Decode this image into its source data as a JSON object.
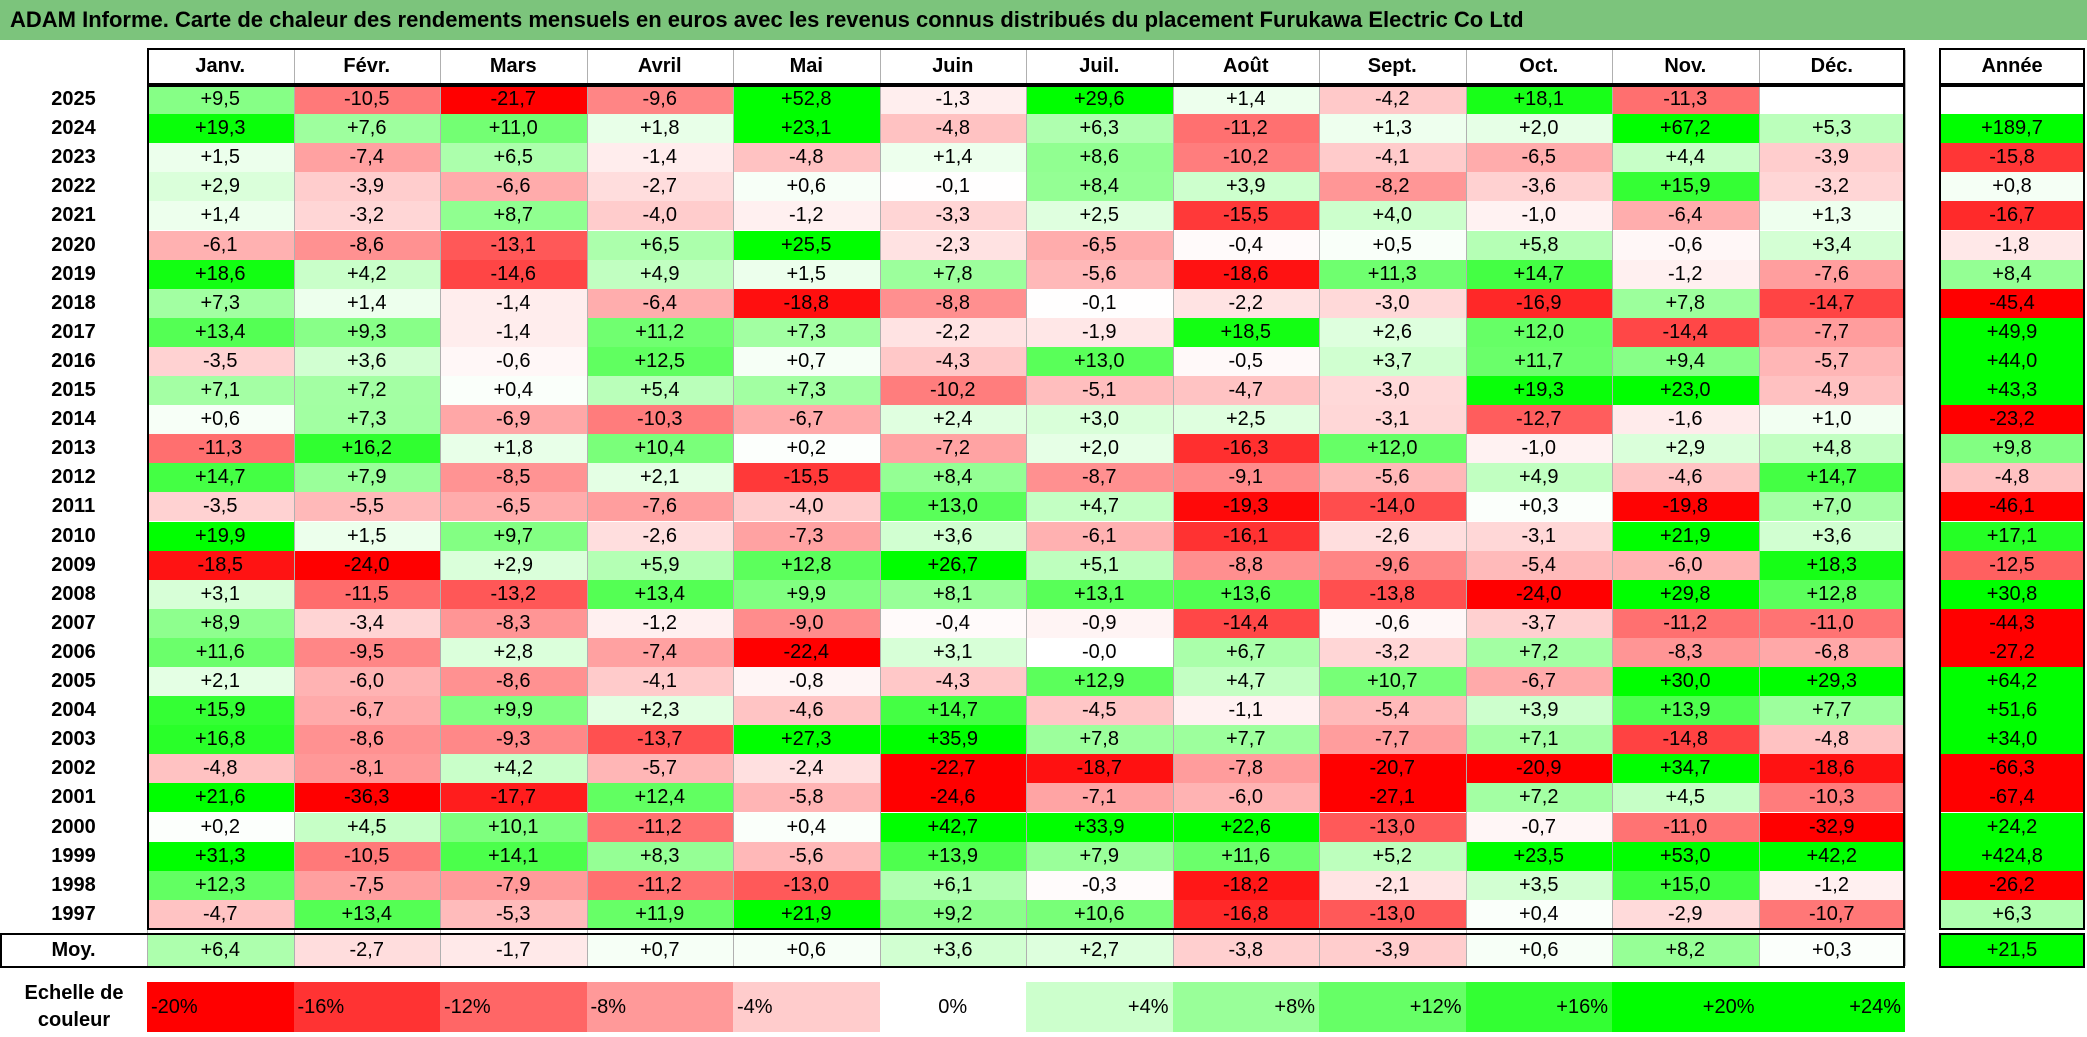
{
  "title": "ADAM Informe. Carte de chaleur des rendements mensuels en euros avec les revenus connus distribués du placement Furukawa Electric Co Ltd",
  "chart_data": {
    "type": "heatmap",
    "title": "ADAM Informe. Carte de chaleur des rendements mensuels en euros avec les revenus connus distribués du placement Furukawa Electric Co Ltd",
    "columns": [
      "Janv.",
      "Févr.",
      "Mars",
      "Avril",
      "Mai",
      "Juin",
      "Juil.",
      "Août",
      "Sept.",
      "Oct.",
      "Nov.",
      "Déc."
    ],
    "annual_header": "Année",
    "rows": [
      {
        "year": "2025",
        "values": [
          "+9,5",
          "-10,5",
          "-21,7",
          "-9,6",
          "+52,8",
          "-1,3",
          "+29,6",
          "+1,4",
          "-4,2",
          "+18,1",
          "-11,3",
          ""
        ],
        "annual": ""
      },
      {
        "year": "2024",
        "values": [
          "+19,3",
          "+7,6",
          "+11,0",
          "+1,8",
          "+23,1",
          "-4,8",
          "+6,3",
          "-11,2",
          "+1,3",
          "+2,0",
          "+67,2",
          "+5,3"
        ],
        "annual": "+189,7"
      },
      {
        "year": "2023",
        "values": [
          "+1,5",
          "-7,4",
          "+6,5",
          "-1,4",
          "-4,8",
          "+1,4",
          "+8,6",
          "-10,2",
          "-4,1",
          "-6,5",
          "+4,4",
          "-3,9"
        ],
        "annual": "-15,8"
      },
      {
        "year": "2022",
        "values": [
          "+2,9",
          "-3,9",
          "-6,6",
          "-2,7",
          "+0,6",
          "-0,1",
          "+8,4",
          "+3,9",
          "-8,2",
          "-3,6",
          "+15,9",
          "-3,2"
        ],
        "annual": "+0,8"
      },
      {
        "year": "2021",
        "values": [
          "+1,4",
          "-3,2",
          "+8,7",
          "-4,0",
          "-1,2",
          "-3,3",
          "+2,5",
          "-15,5",
          "+4,0",
          "-1,0",
          "-6,4",
          "+1,3"
        ],
        "annual": "-16,7"
      },
      {
        "year": "2020",
        "values": [
          "-6,1",
          "-8,6",
          "-13,1",
          "+6,5",
          "+25,5",
          "-2,3",
          "-6,5",
          "-0,4",
          "+0,5",
          "+5,8",
          "-0,6",
          "+3,4"
        ],
        "annual": "-1,8"
      },
      {
        "year": "2019",
        "values": [
          "+18,6",
          "+4,2",
          "-14,6",
          "+4,9",
          "+1,5",
          "+7,8",
          "-5,6",
          "-18,6",
          "+11,3",
          "+14,7",
          "-1,2",
          "-7,6"
        ],
        "annual": "+8,4"
      },
      {
        "year": "2018",
        "values": [
          "+7,3",
          "+1,4",
          "-1,4",
          "-6,4",
          "-18,8",
          "-8,8",
          "-0,1",
          "-2,2",
          "-3,0",
          "-16,9",
          "+7,8",
          "-14,7"
        ],
        "annual": "-45,4"
      },
      {
        "year": "2017",
        "values": [
          "+13,4",
          "+9,3",
          "-1,4",
          "+11,2",
          "+7,3",
          "-2,2",
          "-1,9",
          "+18,5",
          "+2,6",
          "+12,0",
          "-14,4",
          "-7,7"
        ],
        "annual": "+49,9"
      },
      {
        "year": "2016",
        "values": [
          "-3,5",
          "+3,6",
          "-0,6",
          "+12,5",
          "+0,7",
          "-4,3",
          "+13,0",
          "-0,5",
          "+3,7",
          "+11,7",
          "+9,4",
          "-5,7"
        ],
        "annual": "+44,0"
      },
      {
        "year": "2015",
        "values": [
          "+7,1",
          "+7,2",
          "+0,4",
          "+5,4",
          "+7,3",
          "-10,2",
          "-5,1",
          "-4,7",
          "-3,0",
          "+19,3",
          "+23,0",
          "-4,9"
        ],
        "annual": "+43,3"
      },
      {
        "year": "2014",
        "values": [
          "+0,6",
          "+7,3",
          "-6,9",
          "-10,3",
          "-6,7",
          "+2,4",
          "+3,0",
          "+2,5",
          "-3,1",
          "-12,7",
          "-1,6",
          "+1,0"
        ],
        "annual": "-23,2"
      },
      {
        "year": "2013",
        "values": [
          "-11,3",
          "+16,2",
          "+1,8",
          "+10,4",
          "+0,2",
          "-7,2",
          "+2,0",
          "-16,3",
          "+12,0",
          "-1,0",
          "+2,9",
          "+4,8"
        ],
        "annual": "+9,8"
      },
      {
        "year": "2012",
        "values": [
          "+14,7",
          "+7,9",
          "-8,5",
          "+2,1",
          "-15,5",
          "+8,4",
          "-8,7",
          "-9,1",
          "-5,6",
          "+4,9",
          "-4,6",
          "+14,7"
        ],
        "annual": "-4,8"
      },
      {
        "year": "2011",
        "values": [
          "-3,5",
          "-5,5",
          "-6,5",
          "-7,6",
          "-4,0",
          "+13,0",
          "+4,7",
          "-19,3",
          "-14,0",
          "+0,3",
          "-19,8",
          "+7,0"
        ],
        "annual": "-46,1"
      },
      {
        "year": "2010",
        "values": [
          "+19,9",
          "+1,5",
          "+9,7",
          "-2,6",
          "-7,3",
          "+3,6",
          "-6,1",
          "-16,1",
          "-2,6",
          "-3,1",
          "+21,9",
          "+3,6"
        ],
        "annual": "+17,1"
      },
      {
        "year": "2009",
        "values": [
          "-18,5",
          "-24,0",
          "+2,9",
          "+5,9",
          "+12,8",
          "+26,7",
          "+5,1",
          "-8,8",
          "-9,6",
          "-5,4",
          "-6,0",
          "+18,3"
        ],
        "annual": "-12,5"
      },
      {
        "year": "2008",
        "values": [
          "+3,1",
          "-11,5",
          "-13,2",
          "+13,4",
          "+9,9",
          "+8,1",
          "+13,1",
          "+13,6",
          "-13,8",
          "-24,0",
          "+29,8",
          "+12,8"
        ],
        "annual": "+30,8"
      },
      {
        "year": "2007",
        "values": [
          "+8,9",
          "-3,4",
          "-8,3",
          "-1,2",
          "-9,0",
          "-0,4",
          "-0,9",
          "-14,4",
          "-0,6",
          "-3,7",
          "-11,2",
          "-11,0"
        ],
        "annual": "-44,3"
      },
      {
        "year": "2006",
        "values": [
          "+11,6",
          "-9,5",
          "+2,8",
          "-7,4",
          "-22,4",
          "+3,1",
          "-0,0",
          "+6,7",
          "-3,2",
          "+7,2",
          "-8,3",
          "-6,8"
        ],
        "annual": "-27,2"
      },
      {
        "year": "2005",
        "values": [
          "+2,1",
          "-6,0",
          "-8,6",
          "-4,1",
          "-0,8",
          "-4,3",
          "+12,9",
          "+4,7",
          "+10,7",
          "-6,7",
          "+30,0",
          "+29,3"
        ],
        "annual": "+64,2"
      },
      {
        "year": "2004",
        "values": [
          "+15,9",
          "-6,7",
          "+9,9",
          "+2,3",
          "-4,6",
          "+14,7",
          "-4,5",
          "-1,1",
          "-5,4",
          "+3,9",
          "+13,9",
          "+7,7"
        ],
        "annual": "+51,6"
      },
      {
        "year": "2003",
        "values": [
          "+16,8",
          "-8,6",
          "-9,3",
          "-13,7",
          "+27,3",
          "+35,9",
          "+7,8",
          "+7,7",
          "-7,7",
          "+7,1",
          "-14,8",
          "-4,8"
        ],
        "annual": "+34,0"
      },
      {
        "year": "2002",
        "values": [
          "-4,8",
          "-8,1",
          "+4,2",
          "-5,7",
          "-2,4",
          "-22,7",
          "-18,7",
          "-7,8",
          "-20,7",
          "-20,9",
          "+34,7",
          "-18,6"
        ],
        "annual": "-66,3"
      },
      {
        "year": "2001",
        "values": [
          "+21,6",
          "-36,3",
          "-17,7",
          "+12,4",
          "-5,8",
          "-24,6",
          "-7,1",
          "-6,0",
          "-27,1",
          "+7,2",
          "+4,5",
          "-10,3"
        ],
        "annual": "-67,4"
      },
      {
        "year": "2000",
        "values": [
          "+0,2",
          "+4,5",
          "+10,1",
          "-11,2",
          "+0,4",
          "+42,7",
          "+33,9",
          "+22,6",
          "-13,0",
          "-0,7",
          "-11,0",
          "-32,9"
        ],
        "annual": "+24,2"
      },
      {
        "year": "1999",
        "values": [
          "+31,3",
          "-10,5",
          "+14,1",
          "+8,3",
          "-5,6",
          "+13,9",
          "+7,9",
          "+11,6",
          "+5,2",
          "+23,5",
          "+53,0",
          "+42,2"
        ],
        "annual": "+424,8"
      },
      {
        "year": "1998",
        "values": [
          "+12,3",
          "-7,5",
          "-7,9",
          "-11,2",
          "-13,0",
          "+6,1",
          "-0,3",
          "-18,2",
          "-2,1",
          "+3,5",
          "+15,0",
          "-1,2"
        ],
        "annual": "-26,2"
      },
      {
        "year": "1997",
        "values": [
          "-4,7",
          "+13,4",
          "-5,3",
          "+11,9",
          "+21,9",
          "+9,2",
          "+10,6",
          "-16,8",
          "-13,0",
          "+0,4",
          "-2,9",
          "-10,7"
        ],
        "annual": "+6,3"
      }
    ],
    "average": {
      "label": "Moy.",
      "values": [
        "+6,4",
        "-2,7",
        "-1,7",
        "+0,7",
        "+0,6",
        "+3,6",
        "+2,7",
        "-3,8",
        "-3,9",
        "+0,6",
        "+8,2",
        "+0,3"
      ],
      "annual": "+21,5"
    },
    "color_scale": {
      "label": "Echelle de couleur",
      "steps": [
        "-20%",
        "-16%",
        "-12%",
        "-8%",
        "-4%",
        "0%",
        "+4%",
        "+8%",
        "+12%",
        "+16%",
        "+20%",
        "+24%"
      ],
      "colors": [
        "#ff0000",
        "#ff3333",
        "#ff6666",
        "#ff9999",
        "#ffcccc",
        "#ffffff",
        "#ccffcc",
        "#99ff99",
        "#66ff66",
        "#33ff33",
        "#00ff00",
        "#00ff00"
      ]
    }
  }
}
